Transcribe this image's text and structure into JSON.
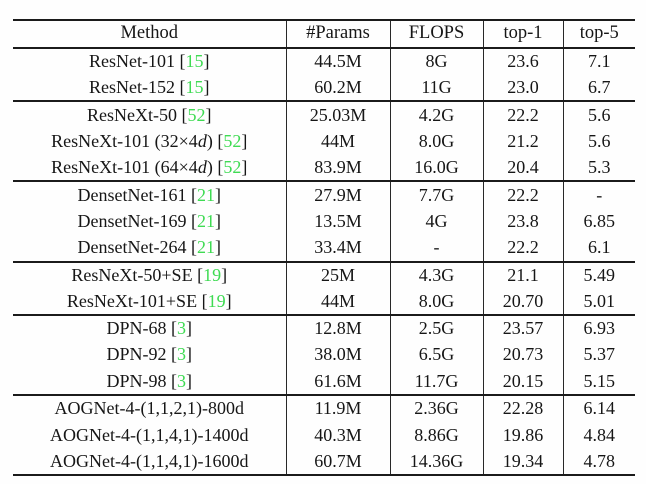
{
  "table": {
    "columns": [
      "Method",
      "#Params",
      "FLOPS",
      "top-1",
      "top-5"
    ],
    "citation_color": "#3fdb53",
    "border_color": "#1b1b1b",
    "groups": [
      {
        "rows": [
          {
            "method": "ResNet-101",
            "cite": "15",
            "params": "44.5M",
            "flops": "8G",
            "top1": "23.6",
            "top5": "7.1"
          },
          {
            "method": "ResNet-152",
            "cite": "15",
            "params": "60.2M",
            "flops": "11G",
            "top1": "23.0",
            "top5": "6.7"
          }
        ]
      },
      {
        "rows": [
          {
            "method": "ResNeXt-50",
            "cite": "52",
            "params": "25.03M",
            "flops": "4.2G",
            "top1": "22.2",
            "top5": "5.6"
          },
          {
            "method": "ResNeXt-101 (32×4d)",
            "cite": "52",
            "params": "44M",
            "flops": "8.0G",
            "top1": "21.2",
            "top5": "5.6"
          },
          {
            "method": "ResNeXt-101 (64×4d)",
            "cite": "52",
            "params": "83.9M",
            "flops": "16.0G",
            "top1": "20.4",
            "top5": "5.3"
          }
        ]
      },
      {
        "rows": [
          {
            "method": "DensetNet-161",
            "cite": "21",
            "params": "27.9M",
            "flops": "7.7G",
            "top1": "22.2",
            "top5": "-"
          },
          {
            "method": "DensetNet-169",
            "cite": "21",
            "params": "13.5M",
            "flops": "4G",
            "top1": "23.8",
            "top5": "6.85"
          },
          {
            "method": "DensetNet-264",
            "cite": "21",
            "params": "33.4M",
            "flops": "-",
            "top1": "22.2",
            "top5": "6.1"
          }
        ]
      },
      {
        "rows": [
          {
            "method": "ResNeXt-50+SE",
            "cite": "19",
            "params": "25M",
            "flops": "4.3G",
            "top1": "21.1",
            "top5": "5.49"
          },
          {
            "method": "ResNeXt-101+SE",
            "cite": "19",
            "params": "44M",
            "flops": "8.0G",
            "top1": "20.70",
            "top5": "5.01"
          }
        ]
      },
      {
        "rows": [
          {
            "method": "DPN-68",
            "cite": "3",
            "params": "12.8M",
            "flops": "2.5G",
            "top1": "23.57",
            "top5": "6.93"
          },
          {
            "method": "DPN-92",
            "cite": "3",
            "params": "38.0M",
            "flops": "6.5G",
            "top1": "20.73",
            "top5": "5.37"
          },
          {
            "method": "DPN-98",
            "cite": "3",
            "params": "61.6M",
            "flops": "11.7G",
            "top1": "20.15",
            "top5": "5.15"
          }
        ]
      },
      {
        "rows": [
          {
            "method": "AOGNet-4-(1,1,2,1)-800d",
            "params": "11.9M",
            "flops": "2.36G",
            "top1": "22.28",
            "top5": "6.14"
          },
          {
            "method": "AOGNet-4-(1,1,4,1)-1400d",
            "params": "40.3M",
            "flops": "8.86G",
            "top1": "19.86",
            "top5": "4.84"
          },
          {
            "method": "AOGNet-4-(1,1,4,1)-1600d",
            "params": "60.7M",
            "flops": "14.36G",
            "top1": "19.34",
            "top5": "4.78"
          }
        ]
      }
    ]
  }
}
